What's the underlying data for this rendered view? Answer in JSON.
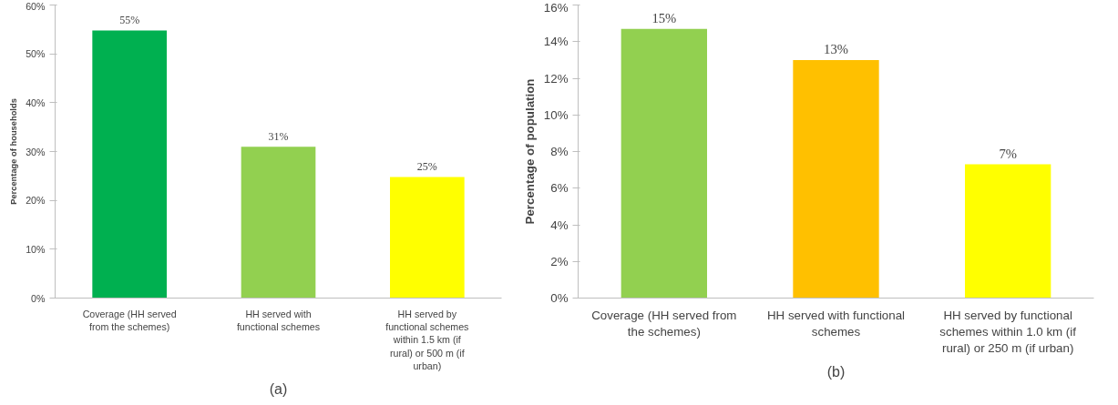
{
  "chart_data": [
    {
      "type": "bar",
      "ylabel": "Percentage of households",
      "categories": [
        "Coverage (HH served from the schemes)",
        "HH served with functional schemes",
        "HH served by functional schemes  within 1.5 km (if rural) or 500 m (if urban)"
      ],
      "values": [
        54.8,
        31,
        24.8
      ],
      "value_labels": [
        "55%",
        "31%",
        "25%"
      ],
      "colors": [
        "#00b050",
        "#92d050",
        "#ffff00"
      ],
      "ylim": [
        0,
        60
      ],
      "yticks": [
        {
          "value": 0,
          "label": "0%"
        },
        {
          "value": 10,
          "label": "10%"
        },
        {
          "value": 20,
          "label": "20%"
        },
        {
          "value": 30,
          "label": "30%"
        },
        {
          "value": 40,
          "label": "40%"
        },
        {
          "value": 50,
          "label": "50%"
        },
        {
          "value": 60,
          "label": "60%"
        }
      ],
      "grid": false,
      "annotations": [
        "(a)"
      ]
    },
    {
      "type": "bar",
      "ylabel": "Percentage of population",
      "categories": [
        "Coverage (HH served from the schemes)",
        "HH served with functional schemes",
        "HH served by functional schemes within 1.0 km (if rural) or 250 m (if urban)"
      ],
      "values": [
        14.7,
        13.0,
        7.3
      ],
      "value_labels": [
        "15%",
        "13%",
        "7%"
      ],
      "colors": [
        "#92d050",
        "#ffc000",
        "#ffff00"
      ],
      "ylim": [
        0,
        16
      ],
      "yticks": [
        {
          "value": 0,
          "label": "0%"
        },
        {
          "value": 2,
          "label": "2%"
        },
        {
          "value": 4,
          "label": "4%"
        },
        {
          "value": 6,
          "label": "6%"
        },
        {
          "value": 8,
          "label": "8%"
        },
        {
          "value": 10,
          "label": "10%"
        },
        {
          "value": 12,
          "label": "12%"
        },
        {
          "value": 14,
          "label": "14%"
        },
        {
          "value": 16,
          "label": "16%"
        }
      ],
      "grid": false,
      "annotations": [
        "(b)"
      ]
    }
  ]
}
